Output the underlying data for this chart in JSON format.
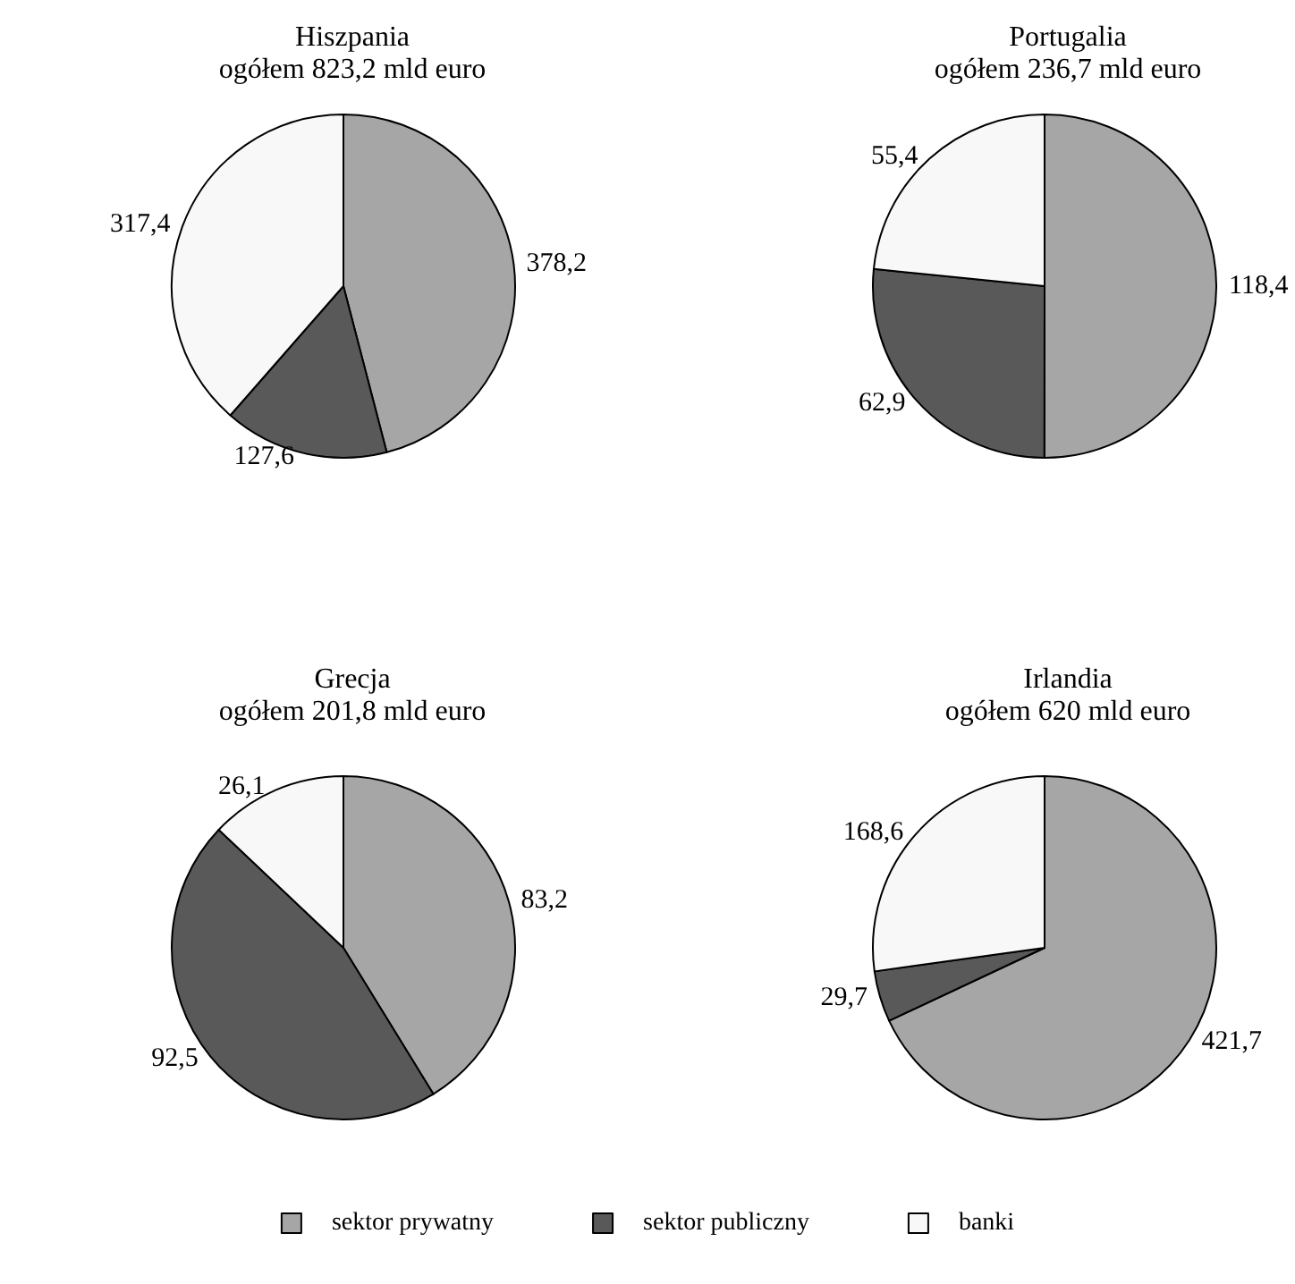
{
  "chart_data": [
    {
      "type": "pie",
      "title": "Hiszpania",
      "subtitle": "ogółem 823,2 mld euro",
      "categories": [
        null,
        null,
        null
      ],
      "values": [
        378.2,
        127.6,
        317.4
      ],
      "value_labels": [
        "378,2",
        "127,6",
        "317,4"
      ],
      "colors": [
        "#a6a6a6",
        "#595959",
        "#f8f8f8"
      ],
      "legend": false
    },
    {
      "type": "pie",
      "title": "Portugalia",
      "subtitle": "ogółem 236,7 mld euro",
      "categories": [
        null,
        null,
        null
      ],
      "values": [
        118.4,
        62.9,
        55.4
      ],
      "value_labels": [
        "118,4",
        "62,9",
        "55,4"
      ],
      "colors": [
        "#a6a6a6",
        "#595959",
        "#f8f8f8"
      ],
      "legend": false
    },
    {
      "type": "pie",
      "title": "Grecja",
      "subtitle": "ogółem 201,8 mld euro",
      "categories": [
        null,
        null,
        null
      ],
      "values": [
        83.2,
        92.5,
        26.1
      ],
      "value_labels": [
        "83,2",
        "92,5",
        "26,1"
      ],
      "colors": [
        "#a6a6a6",
        "#595959",
        "#f8f8f8"
      ],
      "legend": false
    },
    {
      "type": "pie",
      "title": "Irlandia",
      "subtitle": "ogółem 620 mld euro",
      "categories": [
        "sektor prywatny",
        "sektor publiczny",
        "banki"
      ],
      "values": [
        421.7,
        29.7,
        168.6
      ],
      "value_labels": [
        "421,7",
        "29,7",
        "168,6"
      ],
      "colors": [
        "#a6a6a6",
        "#595959",
        "#f8f8f8"
      ],
      "legend": "bottom"
    }
  ]
}
